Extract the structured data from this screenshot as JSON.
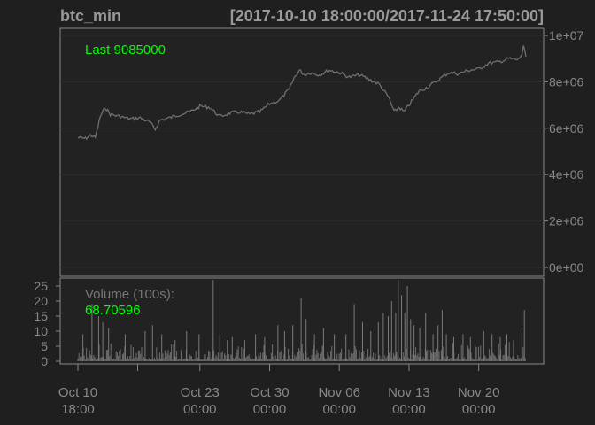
{
  "header": {
    "name": "btc_min",
    "range": "[2017-10-10 18:00:00/2017-11-24 17:50:00]"
  },
  "colors": {
    "background": "#1f1f1f",
    "panel": "#222222",
    "line": "#707070",
    "bars": "#6e6e6e",
    "axis": "#888888",
    "text": "#999999",
    "highlight": "#00ff00"
  },
  "chart_data": [
    {
      "type": "line",
      "title": "btc_min",
      "subtitle": "[2017-10-10 18:00:00/2017-11-24 17:50:00]",
      "annotation": "Last 9085000",
      "last_value": 9085000,
      "y_axis_position": "right",
      "yticks": [
        0,
        2000000,
        4000000,
        6000000,
        8000000,
        10000000
      ],
      "ytick_labels": [
        "0e+00",
        "2e+06",
        "4e+06",
        "6e+06",
        "8e+06",
        "1e+07"
      ],
      "ylim": [
        -100000,
        10100000
      ],
      "xlim": [
        "2017-10-10 18:00",
        "2017-11-24 17:50"
      ],
      "grid": true,
      "series": [
        {
          "x": [
            "2017-10-10 18:00",
            "2017-10-11 12:00",
            "2017-10-12 00:00",
            "2017-10-12 12:00",
            "2017-10-13 00:00",
            "2017-10-13 12:00",
            "2017-10-14 00:00",
            "2017-10-15 00:00",
            "2017-10-16 00:00",
            "2017-10-17 00:00",
            "2017-10-18 00:00",
            "2017-10-18 12:00",
            "2017-10-19 00:00",
            "2017-10-20 00:00",
            "2017-10-21 00:00",
            "2017-10-22 00:00",
            "2017-10-23 00:00",
            "2017-10-24 00:00",
            "2017-10-25 00:00",
            "2017-10-26 00:00",
            "2017-10-27 00:00",
            "2017-10-28 00:00",
            "2017-10-29 00:00",
            "2017-10-30 00:00",
            "2017-10-31 00:00",
            "2017-11-01 00:00",
            "2017-11-01 12:00",
            "2017-11-02 00:00",
            "2017-11-02 12:00",
            "2017-11-03 00:00",
            "2017-11-04 00:00",
            "2017-11-05 00:00",
            "2017-11-06 00:00",
            "2017-11-07 00:00",
            "2017-11-08 00:00",
            "2017-11-09 00:00",
            "2017-11-10 00:00",
            "2017-11-11 00:00",
            "2017-11-11 12:00",
            "2017-11-12 00:00",
            "2017-11-12 12:00",
            "2017-11-13 00:00",
            "2017-11-13 12:00",
            "2017-11-14 00:00",
            "2017-11-15 00:00",
            "2017-11-16 00:00",
            "2017-11-17 00:00",
            "2017-11-18 00:00",
            "2017-11-19 00:00",
            "2017-11-20 00:00",
            "2017-11-21 00:00",
            "2017-11-22 00:00",
            "2017-11-23 00:00",
            "2017-11-24 00:00",
            "2017-11-24 08:00",
            "2017-11-24 12:00",
            "2017-11-24 17:50"
          ],
          "y": [
            5600000,
            5550000,
            5700000,
            5600000,
            6500000,
            6900000,
            6600000,
            6500000,
            6400000,
            6450000,
            6250000,
            5950000,
            6350000,
            6450000,
            6600000,
            6700000,
            6950000,
            6900000,
            6500000,
            6650000,
            6700000,
            6600000,
            6700000,
            7050000,
            7200000,
            7700000,
            8200000,
            8500000,
            8300000,
            8400000,
            8300000,
            8500000,
            8400000,
            8200000,
            8300000,
            8100000,
            7900000,
            7300000,
            6700000,
            6900000,
            6700000,
            7000000,
            7300000,
            7600000,
            7800000,
            8100000,
            8400000,
            8350000,
            8500000,
            8550000,
            8800000,
            8850000,
            9000000,
            8950000,
            9200000,
            9500000,
            9085000
          ]
        }
      ]
    },
    {
      "type": "bar",
      "title": "Volume (100s):",
      "annotation": "68.70596",
      "last_value": 68.70596,
      "yticks": [
        0,
        5,
        10,
        15,
        20,
        25
      ],
      "ylim": [
        0,
        28
      ],
      "xlim": [
        "2017-10-10 18:00",
        "2017-11-24 17:50"
      ],
      "spikes": [
        {
          "x": "2017-10-11 06:00",
          "y": 9
        },
        {
          "x": "2017-10-12 04:00",
          "y": 19
        },
        {
          "x": "2017-10-12 20:00",
          "y": 15
        },
        {
          "x": "2017-10-13 06:00",
          "y": 13
        },
        {
          "x": "2017-10-13 20:00",
          "y": 11
        },
        {
          "x": "2017-10-15 12:00",
          "y": 9
        },
        {
          "x": "2017-10-17 12:00",
          "y": 10
        },
        {
          "x": "2017-10-18 06:00",
          "y": 12
        },
        {
          "x": "2017-10-19 04:00",
          "y": 9
        },
        {
          "x": "2017-10-20 12:00",
          "y": 7
        },
        {
          "x": "2017-10-21 16:00",
          "y": 10
        },
        {
          "x": "2017-10-22 22:00",
          "y": 9
        },
        {
          "x": "2017-10-24 08:00",
          "y": 27
        },
        {
          "x": "2017-10-25 00:00",
          "y": 9
        },
        {
          "x": "2017-10-25 18:00",
          "y": 7
        },
        {
          "x": "2017-10-26 06:00",
          "y": 8
        },
        {
          "x": "2017-10-27 12:00",
          "y": 7
        },
        {
          "x": "2017-10-28 14:00",
          "y": 9
        },
        {
          "x": "2017-10-29 12:00",
          "y": 8
        },
        {
          "x": "2017-10-30 20:00",
          "y": 12
        },
        {
          "x": "2017-10-31 12:00",
          "y": 10
        },
        {
          "x": "2017-11-01 08:00",
          "y": 12
        },
        {
          "x": "2017-11-02 04:00",
          "y": 21
        },
        {
          "x": "2017-11-02 16:00",
          "y": 14
        },
        {
          "x": "2017-11-03 12:00",
          "y": 9
        },
        {
          "x": "2017-11-04 10:00",
          "y": 11
        },
        {
          "x": "2017-11-05 12:00",
          "y": 9
        },
        {
          "x": "2017-11-06 16:00",
          "y": 9
        },
        {
          "x": "2017-11-07 12:00",
          "y": 19
        },
        {
          "x": "2017-11-08 08:00",
          "y": 13
        },
        {
          "x": "2017-11-09 04:00",
          "y": 10
        },
        {
          "x": "2017-11-09 22:00",
          "y": 13
        },
        {
          "x": "2017-11-10 10:00",
          "y": 16
        },
        {
          "x": "2017-11-10 22:00",
          "y": 15
        },
        {
          "x": "2017-11-11 06:00",
          "y": 20
        },
        {
          "x": "2017-11-11 16:00",
          "y": 16
        },
        {
          "x": "2017-11-11 22:00",
          "y": 27
        },
        {
          "x": "2017-11-12 06:00",
          "y": 22
        },
        {
          "x": "2017-11-12 14:00",
          "y": 16
        },
        {
          "x": "2017-11-12 20:00",
          "y": 25
        },
        {
          "x": "2017-11-13 04:00",
          "y": 14
        },
        {
          "x": "2017-11-13 12:00",
          "y": 12
        },
        {
          "x": "2017-11-14 02:00",
          "y": 11
        },
        {
          "x": "2017-11-14 16:00",
          "y": 16
        },
        {
          "x": "2017-11-15 10:00",
          "y": 9
        },
        {
          "x": "2017-11-15 22:00",
          "y": 12
        },
        {
          "x": "2017-11-16 08:00",
          "y": 17
        },
        {
          "x": "2017-11-16 18:00",
          "y": 9
        },
        {
          "x": "2017-11-17 12:00",
          "y": 8
        },
        {
          "x": "2017-11-18 10:00",
          "y": 9
        },
        {
          "x": "2017-11-19 04:00",
          "y": 8
        },
        {
          "x": "2017-11-20 12:00",
          "y": 10
        },
        {
          "x": "2017-11-21 08:00",
          "y": 9
        },
        {
          "x": "2017-11-22 04:00",
          "y": 8
        },
        {
          "x": "2017-11-22 20:00",
          "y": 9
        },
        {
          "x": "2017-11-23 12:00",
          "y": 7
        },
        {
          "x": "2017-11-24 08:00",
          "y": 10
        },
        {
          "x": "2017-11-24 14:00",
          "y": 17
        }
      ]
    }
  ],
  "x_axis": {
    "ticks": [
      {
        "date": "2017-10-10 18:00",
        "label1": "Oct 10",
        "label2": "18:00",
        "labeled": true
      },
      {
        "date": "2017-10-16 18:00",
        "label1": "",
        "label2": "",
        "labeled": false
      },
      {
        "date": "2017-10-23 00:00",
        "label1": "Oct 23",
        "label2": "00:00",
        "labeled": true
      },
      {
        "date": "2017-10-30 00:00",
        "label1": "Oct 30",
        "label2": "00:00",
        "labeled": true
      },
      {
        "date": "2017-11-06 00:00",
        "label1": "Nov 06",
        "label2": "00:00",
        "labeled": true
      },
      {
        "date": "2017-11-13 00:00",
        "label1": "Nov 13",
        "label2": "00:00",
        "labeled": true
      },
      {
        "date": "2017-11-20 00:00",
        "label1": "Nov 20",
        "label2": "00:00",
        "labeled": true
      }
    ]
  }
}
